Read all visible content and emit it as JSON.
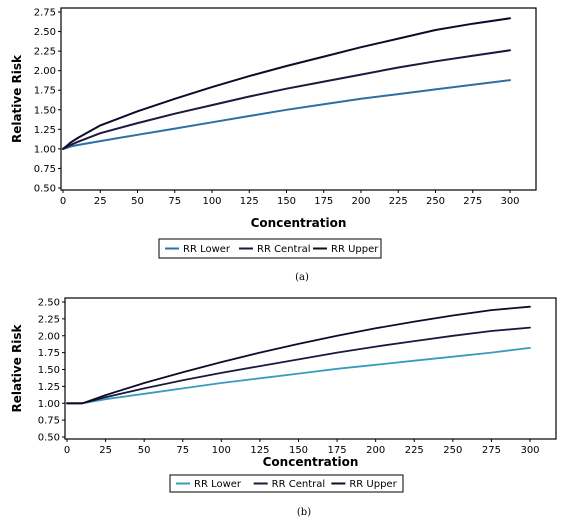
{
  "chart_data": [
    {
      "type": "line",
      "caption": "(a)",
      "xlabel": "Concentration",
      "ylabel": "Relative Risk",
      "xlim": [
        0,
        300
      ],
      "ylim": [
        0.5,
        2.75
      ],
      "xticks": [
        "0",
        "25",
        "50",
        "75",
        "100",
        "125",
        "150",
        "175",
        "200",
        "225",
        "250",
        "275",
        "300"
      ],
      "yticks": [
        "0.50",
        "0.75",
        "1.00",
        "1.25",
        "1.50",
        "1.75",
        "2.00",
        "2.25",
        "2.50",
        "2.75"
      ],
      "x": [
        0,
        2,
        5,
        10,
        25,
        50,
        75,
        100,
        125,
        150,
        175,
        200,
        225,
        250,
        275,
        300
      ],
      "legend_position": "bottom",
      "grid": false,
      "series": [
        {
          "name": "RR Lower",
          "color": "#2e6fa3",
          "values": [
            1.0,
            1.01,
            1.03,
            1.05,
            1.1,
            1.18,
            1.26,
            1.34,
            1.42,
            1.5,
            1.57,
            1.64,
            1.7,
            1.76,
            1.82,
            1.88
          ]
        },
        {
          "name": "RR Central",
          "color": "#1a1a40",
          "values": [
            1.0,
            1.02,
            1.05,
            1.09,
            1.2,
            1.33,
            1.45,
            1.56,
            1.67,
            1.77,
            1.86,
            1.95,
            2.04,
            2.12,
            2.19,
            2.26
          ]
        },
        {
          "name": "RR Upper",
          "color": "#0d0d2b",
          "values": [
            1.0,
            1.03,
            1.08,
            1.14,
            1.3,
            1.48,
            1.64,
            1.79,
            1.93,
            2.06,
            2.18,
            2.3,
            2.41,
            2.52,
            2.6,
            2.67
          ]
        }
      ]
    },
    {
      "type": "line",
      "caption": "(b)",
      "xlabel": "Concentration",
      "ylabel": "Relative Risk",
      "xlim": [
        0,
        300
      ],
      "ylim": [
        0.5,
        2.5
      ],
      "xticks": [
        "0",
        "25",
        "50",
        "75",
        "100",
        "125",
        "150",
        "175",
        "200",
        "225",
        "250",
        "275",
        "300"
      ],
      "yticks": [
        "0.50",
        "0.75",
        "1.00",
        "1.25",
        "1.50",
        "1.75",
        "2.00",
        "2.25",
        "2.50"
      ],
      "x": [
        0,
        5,
        10,
        25,
        50,
        75,
        100,
        125,
        150,
        175,
        200,
        225,
        250,
        275,
        300
      ],
      "legend_position": "bottom",
      "grid": false,
      "series": [
        {
          "name": "RR Lower",
          "color": "#3a9bc0",
          "values": [
            1.0,
            1.0,
            1.0,
            1.06,
            1.14,
            1.22,
            1.3,
            1.37,
            1.44,
            1.51,
            1.57,
            1.63,
            1.69,
            1.75,
            1.82
          ]
        },
        {
          "name": "RR Central",
          "color": "#1a1a40",
          "values": [
            1.0,
            1.0,
            1.0,
            1.09,
            1.22,
            1.34,
            1.45,
            1.55,
            1.65,
            1.75,
            1.84,
            1.92,
            2.0,
            2.07,
            2.12
          ]
        },
        {
          "name": "RR Upper",
          "color": "#0d0d2b",
          "values": [
            1.0,
            1.0,
            1.0,
            1.12,
            1.3,
            1.46,
            1.61,
            1.75,
            1.88,
            2.0,
            2.11,
            2.21,
            2.3,
            2.38,
            2.43
          ]
        }
      ]
    }
  ]
}
